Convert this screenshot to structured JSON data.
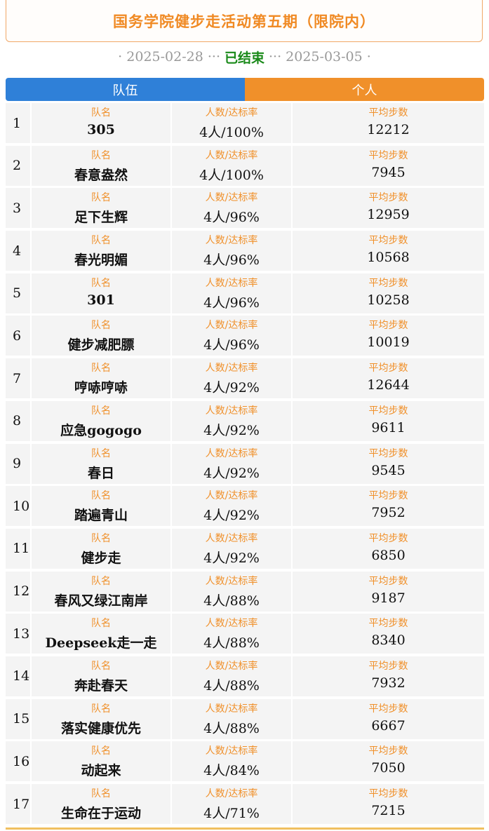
{
  "header": {
    "title": "国务学院健步走活动第五期（限院内）",
    "start_date": "2025-02-28",
    "status": "已结束",
    "end_date": "2025-03-05",
    "sep_left": "·",
    "ellipsis": "···",
    "sep_right": "·"
  },
  "tabs": {
    "team": "队伍",
    "individual": "个人"
  },
  "labels": {
    "team_name": "队名",
    "rate": "人数/达标率",
    "avg_steps": "平均步数"
  },
  "colors": {
    "team_tab": "#2f80d8",
    "individual_tab": "#f0902a",
    "label": "#f0902a",
    "status": "#1a8a1a"
  },
  "rows": [
    {
      "rank": "1",
      "team": "305",
      "rate": "4人/100%",
      "avg": "12212"
    },
    {
      "rank": "2",
      "team": "春意盎然",
      "rate": "4人/100%",
      "avg": "7945"
    },
    {
      "rank": "3",
      "team": "足下生辉",
      "rate": "4人/96%",
      "avg": "12959"
    },
    {
      "rank": "4",
      "team": "春光明媚",
      "rate": "4人/96%",
      "avg": "10568"
    },
    {
      "rank": "5",
      "team": "301",
      "rate": "4人/96%",
      "avg": "10258"
    },
    {
      "rank": "6",
      "team": "健步减肥膘",
      "rate": "4人/96%",
      "avg": "10019"
    },
    {
      "rank": "7",
      "team": "哼哧哼哧",
      "rate": "4人/92%",
      "avg": "12644"
    },
    {
      "rank": "8",
      "team": "应急gogogo",
      "rate": "4人/92%",
      "avg": "9611"
    },
    {
      "rank": "9",
      "team": "春日",
      "rate": "4人/92%",
      "avg": "9545"
    },
    {
      "rank": "10",
      "team": "踏遍青山",
      "rate": "4人/92%",
      "avg": "7952"
    },
    {
      "rank": "11",
      "team": "健步走",
      "rate": "4人/92%",
      "avg": "6850"
    },
    {
      "rank": "12",
      "team": "春风又绿江南岸",
      "rate": "4人/88%",
      "avg": "9187"
    },
    {
      "rank": "13",
      "team": "Deepseek走一走",
      "rate": "4人/88%",
      "avg": "8340"
    },
    {
      "rank": "14",
      "team": "奔赴春天",
      "rate": "4人/88%",
      "avg": "7932"
    },
    {
      "rank": "15",
      "team": "落实健康优先",
      "rate": "4人/88%",
      "avg": "6667"
    },
    {
      "rank": "16",
      "team": "动起来",
      "rate": "4人/84%",
      "avg": "7050"
    },
    {
      "rank": "17",
      "team": "生命在于运动",
      "rate": "4人/71%",
      "avg": "7215"
    }
  ]
}
